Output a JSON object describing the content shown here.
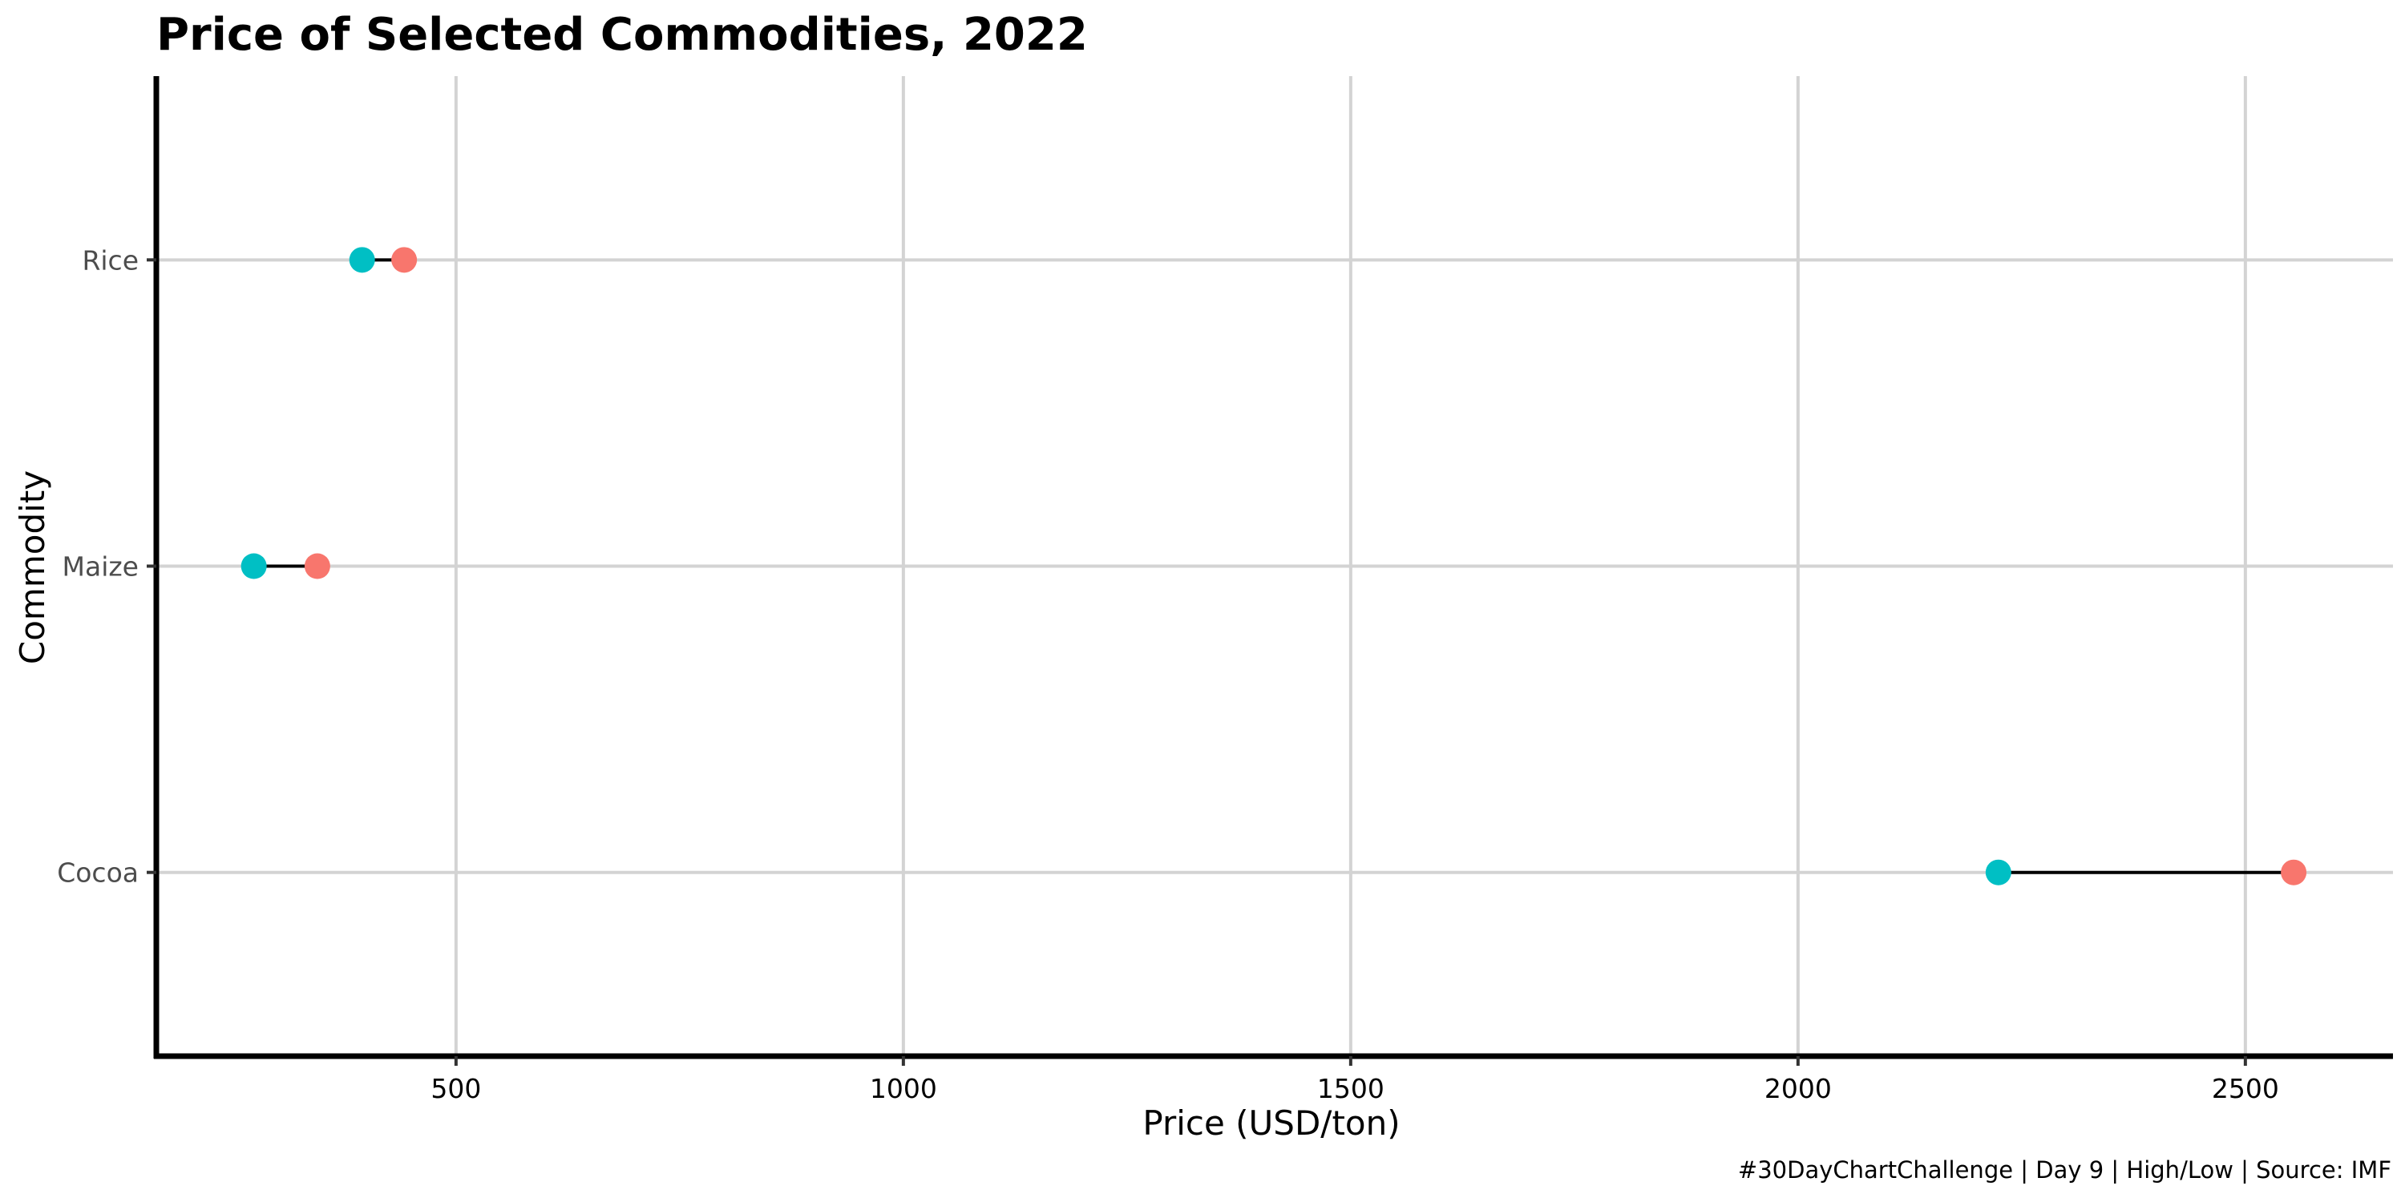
{
  "chart_data": {
    "type": "dumbbell",
    "title": "Price of Selected Commodities, 2022",
    "xlabel": "Price (USD/ton)",
    "ylabel": "Commodity",
    "caption": "#30DayChartChallenge | Day 9 | High/Low | Source: IMF",
    "xlim": [
      165,
      2665
    ],
    "x_ticks": [
      500,
      1000,
      1500,
      2000,
      2500
    ],
    "categories": [
      "Rice",
      "Maize",
      "Cocoa"
    ],
    "series": [
      {
        "values": [
          395,
          274,
          2224
        ]
      },
      {
        "values": [
          442,
          345,
          2554
        ]
      }
    ],
    "colors": {
      "low": "#00bfc4",
      "high": "#f8766d",
      "grid": "#d3d3d3",
      "axis": "#000000",
      "segment": "#000000"
    },
    "grid": true,
    "legend": "none"
  }
}
